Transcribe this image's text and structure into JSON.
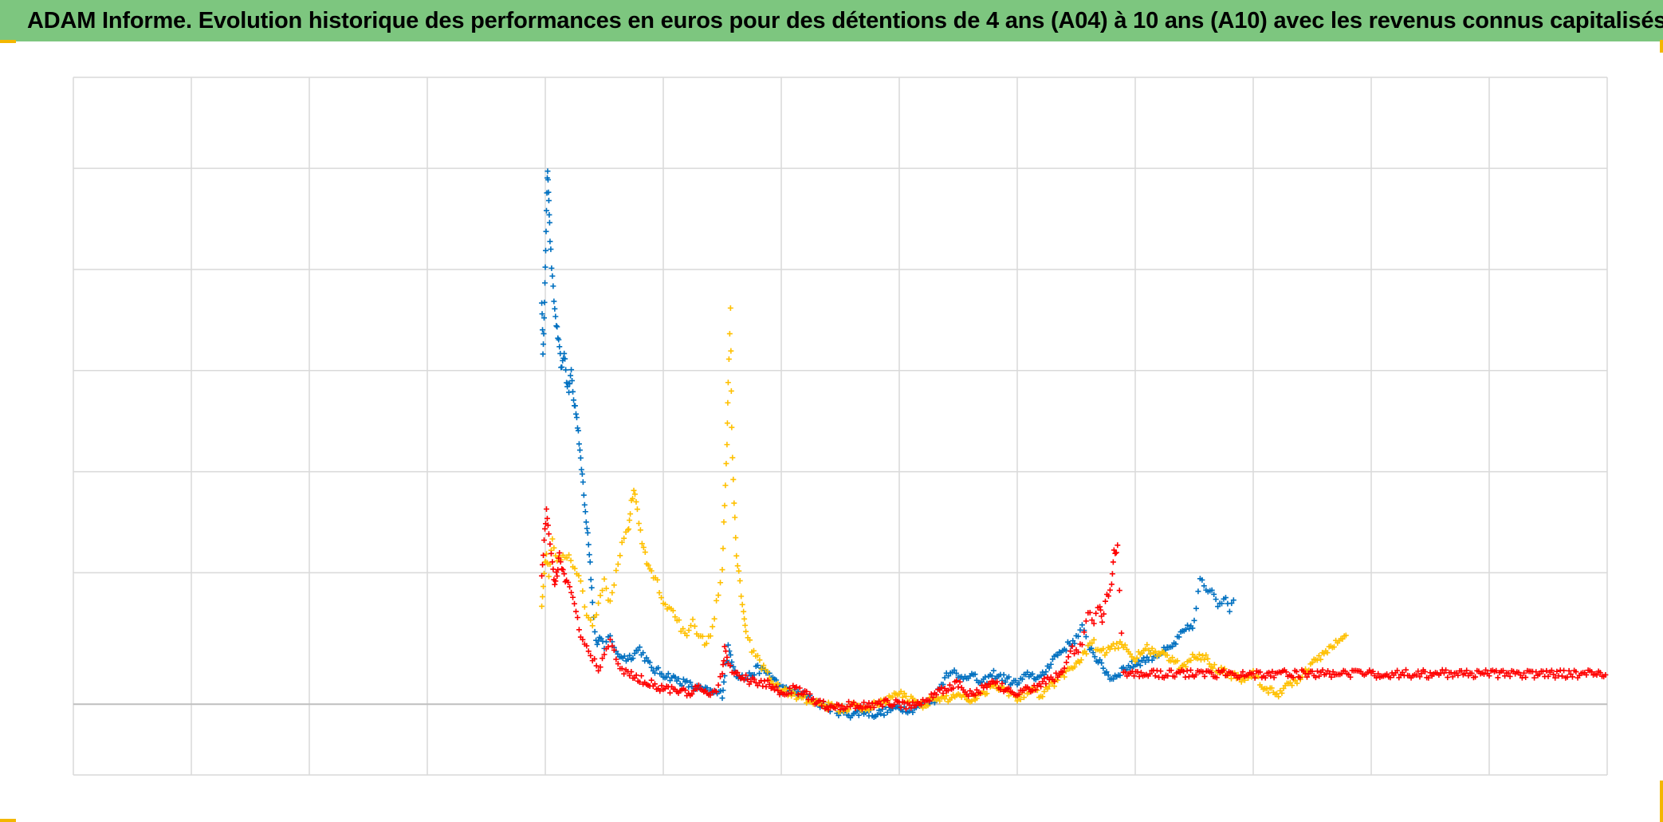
{
  "title": "ADAM Informe. Evolution historique des performances en euros pour des détentions de 4 ans (A04) à 10 ans (A10) avec les revenus connus capitalisés",
  "theme": {
    "title_bar_color": "#7dc67f",
    "corner_color": "#f3b700",
    "grid_color": "#d9d9d9",
    "zero_line_color": "#bfbfbf"
  },
  "chart_data": {
    "type": "scatter",
    "marker": "plus",
    "title": "ADAM Informe. Evolution historique des performances en euros pour des détentions de 4 ans (A04) à 10 ans (A10) avec les revenus connus capitalisés",
    "xlabel": "",
    "ylabel": "",
    "xlim": [
      0,
      13
    ],
    "ylim": [
      -0.7,
      6.2
    ],
    "x_gridlines": 13,
    "y_gridlines": [
      -0.7,
      0,
      1.3,
      2.3,
      3.3,
      4.3,
      5.3,
      6.2
    ],
    "grid": true,
    "tick_labels_visible": false,
    "legend": "none",
    "series": [
      {
        "color": "#0070c0",
        "points": [
          [
            3.97,
            4.0
          ],
          [
            3.98,
            3.5
          ],
          [
            3.99,
            3.8
          ],
          [
            4.0,
            4.3
          ],
          [
            4.01,
            4.9
          ],
          [
            4.02,
            5.3
          ],
          [
            4.03,
            5.0
          ],
          [
            4.04,
            4.6
          ],
          [
            4.06,
            4.2
          ],
          [
            4.08,
            3.9
          ],
          [
            4.1,
            3.7
          ],
          [
            4.12,
            3.5
          ],
          [
            4.14,
            3.3
          ],
          [
            4.16,
            3.5
          ],
          [
            4.18,
            3.2
          ],
          [
            4.2,
            3.1
          ],
          [
            4.22,
            3.3
          ],
          [
            4.24,
            3.0
          ],
          [
            4.26,
            2.9
          ],
          [
            4.28,
            2.7
          ],
          [
            4.3,
            2.4
          ],
          [
            4.32,
            2.2
          ],
          [
            4.34,
            1.9
          ],
          [
            4.36,
            1.7
          ],
          [
            4.38,
            1.4
          ],
          [
            4.4,
            1.0
          ],
          [
            4.43,
            0.6
          ],
          [
            4.46,
            0.65
          ],
          [
            4.5,
            0.55
          ],
          [
            4.55,
            0.7
          ],
          [
            4.6,
            0.5
          ],
          [
            4.7,
            0.45
          ],
          [
            4.8,
            0.55
          ],
          [
            4.9,
            0.35
          ],
          [
            5.0,
            0.3
          ],
          [
            5.1,
            0.25
          ],
          [
            5.2,
            0.2
          ],
          [
            5.3,
            0.15
          ],
          [
            5.4,
            0.12
          ],
          [
            5.5,
            0.1
          ],
          [
            5.52,
            0.3
          ],
          [
            5.55,
            0.55
          ],
          [
            5.58,
            0.45
          ],
          [
            5.62,
            0.3
          ],
          [
            5.7,
            0.25
          ],
          [
            5.8,
            0.35
          ],
          [
            5.9,
            0.3
          ],
          [
            6.0,
            0.15
          ],
          [
            6.1,
            0.12
          ],
          [
            6.2,
            0.08
          ],
          [
            6.3,
            0.02
          ],
          [
            6.4,
            -0.03
          ],
          [
            6.5,
            -0.08
          ],
          [
            6.6,
            -0.1
          ],
          [
            6.7,
            -0.07
          ],
          [
            6.8,
            -0.1
          ],
          [
            6.9,
            -0.06
          ],
          [
            7.0,
            -0.03
          ],
          [
            7.1,
            -0.05
          ],
          [
            7.2,
            0.0
          ],
          [
            7.3,
            0.05
          ],
          [
            7.4,
            0.3
          ],
          [
            7.45,
            0.35
          ],
          [
            7.5,
            0.25
          ],
          [
            7.6,
            0.3
          ],
          [
            7.7,
            0.2
          ],
          [
            7.8,
            0.3
          ],
          [
            7.9,
            0.25
          ],
          [
            8.0,
            0.2
          ],
          [
            8.1,
            0.3
          ],
          [
            8.2,
            0.25
          ],
          [
            8.3,
            0.45
          ],
          [
            8.4,
            0.55
          ],
          [
            8.5,
            0.65
          ],
          [
            8.55,
            0.75
          ],
          [
            8.6,
            0.6
          ],
          [
            8.7,
            0.4
          ],
          [
            8.8,
            0.25
          ],
          [
            8.9,
            0.35
          ],
          [
            9.0,
            0.4
          ],
          [
            9.1,
            0.45
          ],
          [
            9.2,
            0.5
          ],
          [
            9.3,
            0.55
          ],
          [
            9.4,
            0.7
          ],
          [
            9.5,
            0.8
          ],
          [
            9.55,
            1.25
          ],
          [
            9.6,
            1.1
          ],
          [
            9.65,
            1.15
          ],
          [
            9.7,
            1.0
          ],
          [
            9.75,
            1.05
          ],
          [
            9.8,
            0.95
          ],
          [
            9.85,
            1.1
          ]
        ]
      },
      {
        "color": "#ffc000",
        "points": [
          [
            3.97,
            1.0
          ],
          [
            3.99,
            1.3
          ],
          [
            4.01,
            1.5
          ],
          [
            4.03,
            1.3
          ],
          [
            4.06,
            1.6
          ],
          [
            4.1,
            1.4
          ],
          [
            4.15,
            1.5
          ],
          [
            4.2,
            1.45
          ],
          [
            4.25,
            1.35
          ],
          [
            4.3,
            1.2
          ],
          [
            4.35,
            0.9
          ],
          [
            4.4,
            0.75
          ],
          [
            4.45,
            1.0
          ],
          [
            4.5,
            1.2
          ],
          [
            4.55,
            1.0
          ],
          [
            4.6,
            1.3
          ],
          [
            4.65,
            1.6
          ],
          [
            4.7,
            1.7
          ],
          [
            4.72,
            1.9
          ],
          [
            4.75,
            2.15
          ],
          [
            4.78,
            1.9
          ],
          [
            4.82,
            1.6
          ],
          [
            4.86,
            1.4
          ],
          [
            4.9,
            1.3
          ],
          [
            4.95,
            1.2
          ],
          [
            5.0,
            1.0
          ],
          [
            5.05,
            0.95
          ],
          [
            5.1,
            0.9
          ],
          [
            5.15,
            0.75
          ],
          [
            5.2,
            0.65
          ],
          [
            5.25,
            0.8
          ],
          [
            5.3,
            0.7
          ],
          [
            5.35,
            0.6
          ],
          [
            5.4,
            0.65
          ],
          [
            5.45,
            1.0
          ],
          [
            5.5,
            1.35
          ],
          [
            5.52,
            2.0
          ],
          [
            5.54,
            2.6
          ],
          [
            5.55,
            3.2
          ],
          [
            5.57,
            3.9
          ],
          [
            5.58,
            2.7
          ],
          [
            5.6,
            2.0
          ],
          [
            5.62,
            1.5
          ],
          [
            5.65,
            1.2
          ],
          [
            5.68,
            0.9
          ],
          [
            5.7,
            0.7
          ],
          [
            5.75,
            0.55
          ],
          [
            5.8,
            0.45
          ],
          [
            5.85,
            0.35
          ],
          [
            5.9,
            0.25
          ],
          [
            6.0,
            0.15
          ],
          [
            6.1,
            0.1
          ],
          [
            6.2,
            0.05
          ],
          [
            6.3,
            0.0
          ],
          [
            6.4,
            -0.02
          ],
          [
            6.5,
            -0.05
          ],
          [
            6.6,
            -0.02
          ],
          [
            6.7,
            -0.05
          ],
          [
            6.8,
            0.0
          ],
          [
            6.9,
            0.05
          ],
          [
            7.0,
            0.1
          ],
          [
            7.1,
            0.05
          ],
          [
            7.2,
            0.0
          ],
          [
            7.3,
            0.05
          ],
          [
            7.4,
            0.05
          ],
          [
            7.5,
            0.1
          ],
          [
            7.6,
            0.05
          ],
          [
            7.7,
            0.1
          ],
          [
            7.8,
            0.2
          ],
          [
            7.9,
            0.15
          ],
          [
            8.0,
            0.05
          ],
          [
            8.1,
            0.15
          ],
          [
            8.2,
            0.1
          ],
          [
            8.3,
            0.2
          ],
          [
            8.4,
            0.3
          ],
          [
            8.5,
            0.4
          ],
          [
            8.6,
            0.55
          ],
          [
            8.65,
            0.6
          ],
          [
            8.7,
            0.5
          ],
          [
            8.8,
            0.55
          ],
          [
            8.9,
            0.6
          ],
          [
            9.0,
            0.45
          ],
          [
            9.1,
            0.55
          ],
          [
            9.2,
            0.5
          ],
          [
            9.3,
            0.45
          ],
          [
            9.4,
            0.35
          ],
          [
            9.5,
            0.5
          ],
          [
            9.6,
            0.45
          ],
          [
            9.7,
            0.35
          ],
          [
            9.8,
            0.3
          ],
          [
            9.9,
            0.25
          ],
          [
            10.0,
            0.3
          ],
          [
            10.1,
            0.15
          ],
          [
            10.2,
            0.1
          ],
          [
            10.3,
            0.2
          ],
          [
            10.4,
            0.25
          ],
          [
            10.5,
            0.4
          ],
          [
            10.6,
            0.5
          ],
          [
            10.7,
            0.6
          ],
          [
            10.8,
            0.7
          ]
        ]
      },
      {
        "color": "#ff0000",
        "points": [
          [
            3.97,
            1.3
          ],
          [
            3.99,
            1.6
          ],
          [
            4.01,
            1.9
          ],
          [
            4.03,
            1.7
          ],
          [
            4.06,
            1.4
          ],
          [
            4.08,
            1.2
          ],
          [
            4.1,
            1.3
          ],
          [
            4.12,
            1.5
          ],
          [
            4.15,
            1.3
          ],
          [
            4.18,
            1.2
          ],
          [
            4.22,
            1.1
          ],
          [
            4.26,
            0.9
          ],
          [
            4.3,
            0.7
          ],
          [
            4.35,
            0.55
          ],
          [
            4.4,
            0.45
          ],
          [
            4.45,
            0.35
          ],
          [
            4.5,
            0.5
          ],
          [
            4.55,
            0.6
          ],
          [
            4.6,
            0.45
          ],
          [
            4.65,
            0.35
          ],
          [
            4.7,
            0.3
          ],
          [
            4.8,
            0.25
          ],
          [
            4.9,
            0.2
          ],
          [
            5.0,
            0.15
          ],
          [
            5.1,
            0.15
          ],
          [
            5.2,
            0.1
          ],
          [
            5.3,
            0.15
          ],
          [
            5.4,
            0.1
          ],
          [
            5.45,
            0.15
          ],
          [
            5.5,
            0.3
          ],
          [
            5.52,
            0.55
          ],
          [
            5.55,
            0.4
          ],
          [
            5.6,
            0.3
          ],
          [
            5.7,
            0.25
          ],
          [
            5.8,
            0.2
          ],
          [
            5.9,
            0.2
          ],
          [
            6.0,
            0.1
          ],
          [
            6.1,
            0.15
          ],
          [
            6.2,
            0.1
          ],
          [
            6.3,
            0.02
          ],
          [
            6.4,
            -0.02
          ],
          [
            6.5,
            -0.02
          ],
          [
            6.6,
            0.0
          ],
          [
            6.7,
            -0.02
          ],
          [
            6.8,
            0.0
          ],
          [
            6.9,
            0.02
          ],
          [
            7.0,
            0.0
          ],
          [
            7.1,
            -0.02
          ],
          [
            7.2,
            0.03
          ],
          [
            7.3,
            0.1
          ],
          [
            7.4,
            0.15
          ],
          [
            7.5,
            0.2
          ],
          [
            7.6,
            0.1
          ],
          [
            7.7,
            0.15
          ],
          [
            7.8,
            0.2
          ],
          [
            7.9,
            0.15
          ],
          [
            8.0,
            0.1
          ],
          [
            8.1,
            0.15
          ],
          [
            8.2,
            0.2
          ],
          [
            8.3,
            0.25
          ],
          [
            8.4,
            0.35
          ],
          [
            8.45,
            0.55
          ],
          [
            8.5,
            0.5
          ],
          [
            8.55,
            0.6
          ],
          [
            8.6,
            0.9
          ],
          [
            8.65,
            0.8
          ],
          [
            8.7,
            1.0
          ],
          [
            8.72,
            0.85
          ],
          [
            8.76,
            1.05
          ],
          [
            8.8,
            1.2
          ],
          [
            8.82,
            1.5
          ],
          [
            8.85,
            1.55
          ],
          [
            8.9,
            0.3
          ],
          [
            9.5,
            0.3
          ],
          [
            10.0,
            0.3
          ],
          [
            10.5,
            0.3
          ],
          [
            11.0,
            0.3
          ],
          [
            11.5,
            0.3
          ],
          [
            12.0,
            0.3
          ],
          [
            12.5,
            0.3
          ],
          [
            13.0,
            0.3
          ]
        ]
      }
    ]
  }
}
